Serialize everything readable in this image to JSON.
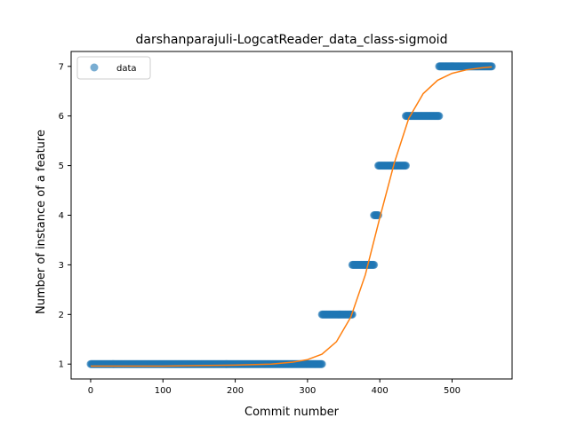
{
  "chart_data": {
    "type": "scatter",
    "title": "darshanparajuli-LogcatReader_data_class-sigmoid",
    "xlabel": "Commit number",
    "ylabel": "Number of instance of a feature",
    "xlim": [
      -27,
      583
    ],
    "ylim": [
      0.7,
      7.3
    ],
    "xticks": [
      0,
      100,
      200,
      300,
      400,
      500
    ],
    "yticks": [
      1,
      2,
      3,
      4,
      5,
      6,
      7
    ],
    "grid": false,
    "legend": {
      "placement": "top-left",
      "entries": [
        "data"
      ]
    },
    "colors": {
      "data": "#1f77b4",
      "fit": "#ff7f0e"
    },
    "series": [
      {
        "name": "data",
        "kind": "scatter",
        "segments": [
          {
            "y": 1,
            "x_start": 0,
            "x_end": 320
          },
          {
            "y": 2,
            "x_start": 320,
            "x_end": 362
          },
          {
            "y": 3,
            "x_start": 362,
            "x_end": 392
          },
          {
            "y": 4,
            "x_start": 392,
            "x_end": 398
          },
          {
            "y": 5,
            "x_start": 398,
            "x_end": 436
          },
          {
            "y": 6,
            "x_start": 436,
            "x_end": 482
          },
          {
            "y": 7,
            "x_start": 482,
            "x_end": 555
          }
        ]
      },
      {
        "kind": "line",
        "x": [
          0,
          50,
          100,
          150,
          200,
          250,
          280,
          300,
          320,
          340,
          360,
          380,
          400,
          420,
          440,
          460,
          480,
          500,
          520,
          540,
          555
        ],
        "y": [
          0.96,
          0.96,
          0.96,
          0.97,
          0.98,
          1.0,
          1.04,
          1.09,
          1.2,
          1.45,
          1.95,
          2.8,
          3.95,
          5.05,
          5.95,
          6.45,
          6.72,
          6.86,
          6.93,
          6.97,
          6.99
        ]
      }
    ]
  }
}
